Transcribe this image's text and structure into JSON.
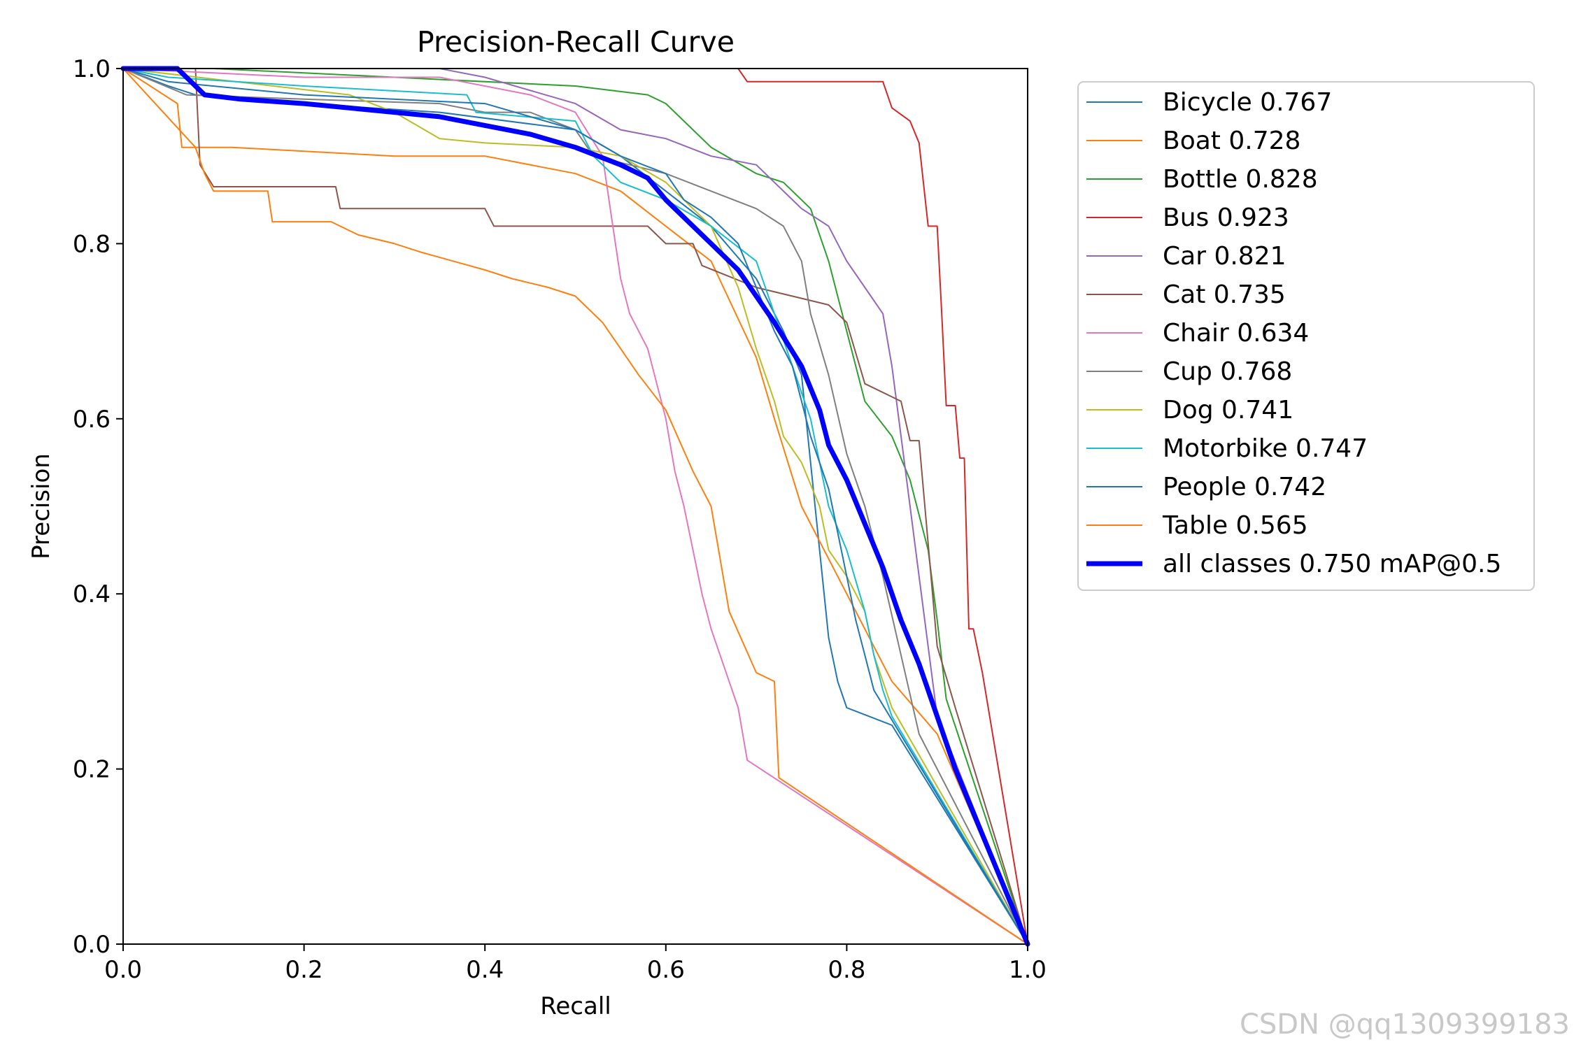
{
  "chart_data": {
    "type": "line",
    "title": "Precision-Recall Curve",
    "xlabel": "Recall",
    "ylabel": "Precision",
    "xlim": [
      0,
      1
    ],
    "ylim": [
      0,
      1
    ],
    "xticks": [
      "0.0",
      "0.2",
      "0.4",
      "0.6",
      "0.8",
      "1.0"
    ],
    "yticks": [
      "0.0",
      "0.2",
      "0.4",
      "0.6",
      "0.8",
      "1.0"
    ],
    "grid": false,
    "legend_position": "outside-right",
    "series": [
      {
        "name": "Bicycle",
        "legend": "Bicycle 0.767",
        "color": "#1f77b4",
        "x": [
          0,
          0.05,
          0.08,
          0.2,
          0.35,
          0.5,
          0.55,
          0.6,
          0.65,
          0.7,
          0.73,
          0.75,
          0.76,
          0.77,
          0.78,
          0.79,
          0.8,
          0.85,
          1.0
        ],
        "y": [
          1.0,
          0.98,
          0.97,
          0.96,
          0.95,
          0.93,
          0.9,
          0.86,
          0.82,
          0.76,
          0.7,
          0.65,
          0.55,
          0.45,
          0.35,
          0.3,
          0.27,
          0.25,
          0.0
        ]
      },
      {
        "name": "Boat",
        "legend": "Boat 0.728",
        "color": "#ff7f0e",
        "x": [
          0,
          0.06,
          0.065,
          0.1,
          0.12,
          0.3,
          0.32,
          0.4,
          0.5,
          0.55,
          0.6,
          0.65,
          0.7,
          0.72,
          0.75,
          0.8,
          0.85,
          0.9,
          1.0
        ],
        "y": [
          1.0,
          0.96,
          0.91,
          0.91,
          0.91,
          0.9,
          0.9,
          0.9,
          0.88,
          0.86,
          0.82,
          0.78,
          0.67,
          0.6,
          0.5,
          0.4,
          0.3,
          0.24,
          0.0
        ]
      },
      {
        "name": "Bottle",
        "legend": "Bottle 0.828",
        "color": "#2ca02c",
        "x": [
          0,
          0.1,
          0.3,
          0.5,
          0.58,
          0.6,
          0.65,
          0.7,
          0.73,
          0.76,
          0.78,
          0.8,
          0.82,
          0.85,
          0.87,
          0.89,
          0.9,
          0.91,
          1.0
        ],
        "y": [
          1.0,
          1.0,
          0.99,
          0.98,
          0.97,
          0.96,
          0.91,
          0.88,
          0.87,
          0.84,
          0.78,
          0.7,
          0.62,
          0.58,
          0.53,
          0.45,
          0.37,
          0.28,
          0.0
        ]
      },
      {
        "name": "Bus",
        "legend": "Bus 0.923",
        "color": "#d62728",
        "x": [
          0,
          0.68,
          0.69,
          0.84,
          0.85,
          0.87,
          0.88,
          0.89,
          0.9,
          0.905,
          0.91,
          0.92,
          0.925,
          0.93,
          0.935,
          0.94,
          0.95,
          1.0
        ],
        "y": [
          1.0,
          1.0,
          0.985,
          0.985,
          0.955,
          0.94,
          0.915,
          0.82,
          0.82,
          0.72,
          0.615,
          0.615,
          0.555,
          0.555,
          0.36,
          0.36,
          0.31,
          0.0
        ]
      },
      {
        "name": "Car",
        "legend": "Car 0.821",
        "color": "#9467bd",
        "x": [
          0,
          0.35,
          0.4,
          0.5,
          0.55,
          0.6,
          0.65,
          0.7,
          0.72,
          0.75,
          0.78,
          0.8,
          0.82,
          0.84,
          0.85,
          0.86,
          0.87,
          0.88,
          0.9,
          1.0
        ],
        "y": [
          1.0,
          1.0,
          0.99,
          0.96,
          0.93,
          0.92,
          0.9,
          0.89,
          0.87,
          0.84,
          0.82,
          0.78,
          0.75,
          0.72,
          0.66,
          0.58,
          0.5,
          0.42,
          0.26,
          0.0
        ]
      },
      {
        "name": "Cat",
        "legend": "Cat 0.735",
        "color": "#8c564b",
        "x": [
          0,
          0.08,
          0.085,
          0.1,
          0.235,
          0.24,
          0.4,
          0.41,
          0.58,
          0.6,
          0.63,
          0.64,
          0.7,
          0.78,
          0.8,
          0.82,
          0.86,
          0.87,
          0.88,
          0.9,
          0.92,
          1.0
        ],
        "y": [
          1.0,
          1.0,
          0.89,
          0.865,
          0.865,
          0.84,
          0.84,
          0.82,
          0.82,
          0.8,
          0.8,
          0.775,
          0.75,
          0.73,
          0.71,
          0.64,
          0.62,
          0.575,
          0.575,
          0.34,
          0.27,
          0.0
        ]
      },
      {
        "name": "Chair",
        "legend": "Chair 0.634",
        "color": "#e377c2",
        "x": [
          0,
          0.2,
          0.35,
          0.45,
          0.5,
          0.53,
          0.54,
          0.55,
          0.56,
          0.58,
          0.6,
          0.61,
          0.62,
          0.63,
          0.64,
          0.65,
          0.66,
          0.67,
          0.68,
          0.69,
          1.0
        ],
        "y": [
          1.0,
          0.99,
          0.99,
          0.97,
          0.95,
          0.9,
          0.83,
          0.76,
          0.72,
          0.68,
          0.6,
          0.54,
          0.5,
          0.45,
          0.4,
          0.36,
          0.33,
          0.3,
          0.27,
          0.21,
          0.0
        ]
      },
      {
        "name": "Cup",
        "legend": "Cup 0.768",
        "color": "#7f7f7f",
        "x": [
          0,
          0.07,
          0.2,
          0.35,
          0.4,
          0.45,
          0.5,
          0.52,
          0.6,
          0.65,
          0.7,
          0.73,
          0.75,
          0.76,
          0.78,
          0.8,
          0.82,
          0.84,
          0.86,
          0.88,
          1.0
        ],
        "y": [
          1.0,
          0.97,
          0.965,
          0.96,
          0.95,
          0.95,
          0.93,
          0.9,
          0.88,
          0.86,
          0.84,
          0.82,
          0.78,
          0.72,
          0.65,
          0.56,
          0.5,
          0.42,
          0.33,
          0.24,
          0.0
        ]
      },
      {
        "name": "Dog",
        "legend": "Dog 0.741",
        "color": "#bcbd22",
        "x": [
          0,
          0.25,
          0.3,
          0.35,
          0.4,
          0.5,
          0.55,
          0.6,
          0.65,
          0.68,
          0.7,
          0.72,
          0.73,
          0.75,
          0.77,
          0.78,
          0.8,
          0.82,
          0.83,
          0.84,
          0.85,
          1.0
        ],
        "y": [
          1.0,
          0.97,
          0.95,
          0.92,
          0.915,
          0.91,
          0.9,
          0.87,
          0.82,
          0.75,
          0.68,
          0.62,
          0.58,
          0.55,
          0.5,
          0.45,
          0.42,
          0.38,
          0.33,
          0.3,
          0.27,
          0.0
        ]
      },
      {
        "name": "Motorbike",
        "legend": "Motorbike 0.747",
        "color": "#17becf",
        "x": [
          0,
          0.05,
          0.2,
          0.38,
          0.39,
          0.5,
          0.52,
          0.55,
          0.6,
          0.65,
          0.7,
          0.72,
          0.74,
          0.76,
          0.77,
          0.78,
          0.8,
          0.82,
          0.83,
          0.84,
          0.85,
          1.0
        ],
        "y": [
          1.0,
          0.99,
          0.98,
          0.97,
          0.95,
          0.94,
          0.9,
          0.87,
          0.85,
          0.82,
          0.78,
          0.72,
          0.66,
          0.6,
          0.55,
          0.5,
          0.45,
          0.38,
          0.33,
          0.29,
          0.26,
          0.0
        ]
      },
      {
        "name": "People",
        "legend": "People 0.742",
        "color": "#1f77b4",
        "x": [
          0,
          0.05,
          0.2,
          0.4,
          0.5,
          0.55,
          0.6,
          0.62,
          0.65,
          0.68,
          0.7,
          0.72,
          0.74,
          0.75,
          0.76,
          0.78,
          0.79,
          0.8,
          0.81,
          0.82,
          0.83,
          1.0
        ],
        "y": [
          1.0,
          0.985,
          0.97,
          0.96,
          0.93,
          0.9,
          0.88,
          0.85,
          0.83,
          0.8,
          0.75,
          0.7,
          0.66,
          0.62,
          0.58,
          0.52,
          0.47,
          0.42,
          0.37,
          0.33,
          0.29,
          0.0
        ]
      },
      {
        "name": "Table",
        "legend": "Table 0.565",
        "color": "#ff7f0e",
        "x": [
          0,
          0.08,
          0.09,
          0.1,
          0.16,
          0.165,
          0.23,
          0.26,
          0.3,
          0.33,
          0.4,
          0.43,
          0.47,
          0.5,
          0.53,
          0.55,
          0.57,
          0.6,
          0.63,
          0.65,
          0.67,
          0.7,
          0.72,
          0.725,
          1.0
        ],
        "y": [
          1.0,
          0.91,
          0.88,
          0.86,
          0.86,
          0.825,
          0.825,
          0.81,
          0.8,
          0.79,
          0.77,
          0.76,
          0.75,
          0.74,
          0.71,
          0.68,
          0.65,
          0.61,
          0.54,
          0.5,
          0.38,
          0.31,
          0.3,
          0.19,
          0.0
        ]
      },
      {
        "name": "all classes",
        "legend": "all classes 0.750 mAP@0.5",
        "color": "#0000ff",
        "bold": true,
        "x": [
          0,
          0.03,
          0.06,
          0.07,
          0.09,
          0.13,
          0.2,
          0.3,
          0.35,
          0.4,
          0.45,
          0.5,
          0.55,
          0.58,
          0.6,
          0.63,
          0.65,
          0.68,
          0.7,
          0.72,
          0.75,
          0.77,
          0.78,
          0.8,
          0.82,
          0.84,
          0.86,
          0.88,
          0.9,
          0.92,
          0.94,
          0.96,
          1.0
        ],
        "y": [
          1.0,
          1.0,
          1.0,
          0.99,
          0.97,
          0.965,
          0.96,
          0.95,
          0.945,
          0.935,
          0.925,
          0.91,
          0.89,
          0.875,
          0.85,
          0.82,
          0.8,
          0.77,
          0.74,
          0.71,
          0.66,
          0.61,
          0.57,
          0.53,
          0.48,
          0.43,
          0.37,
          0.32,
          0.26,
          0.2,
          0.15,
          0.1,
          0.0
        ]
      }
    ]
  },
  "watermark": "CSDN @qq1309399183"
}
